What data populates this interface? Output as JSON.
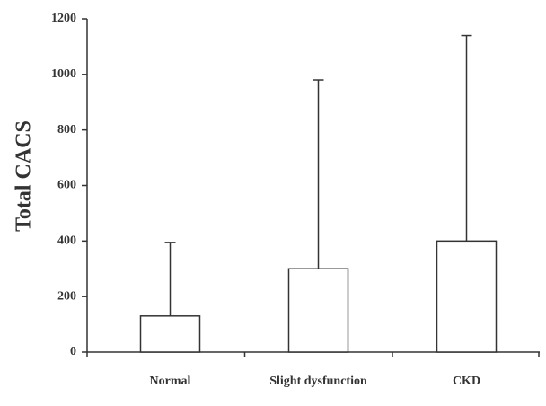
{
  "chart_data": {
    "type": "bar",
    "y_label": "Total CACS",
    "categories": [
      "Normal",
      "Slight dysfunction",
      "CKD"
    ],
    "values": [
      130,
      300,
      400
    ],
    "errors": [
      265,
      680,
      740
    ],
    "color": "#ffffff",
    "ylim": [
      0,
      1200
    ],
    "yticks": [
      0,
      200,
      400,
      600,
      800,
      1000,
      1200
    ],
    "grid": false
  }
}
